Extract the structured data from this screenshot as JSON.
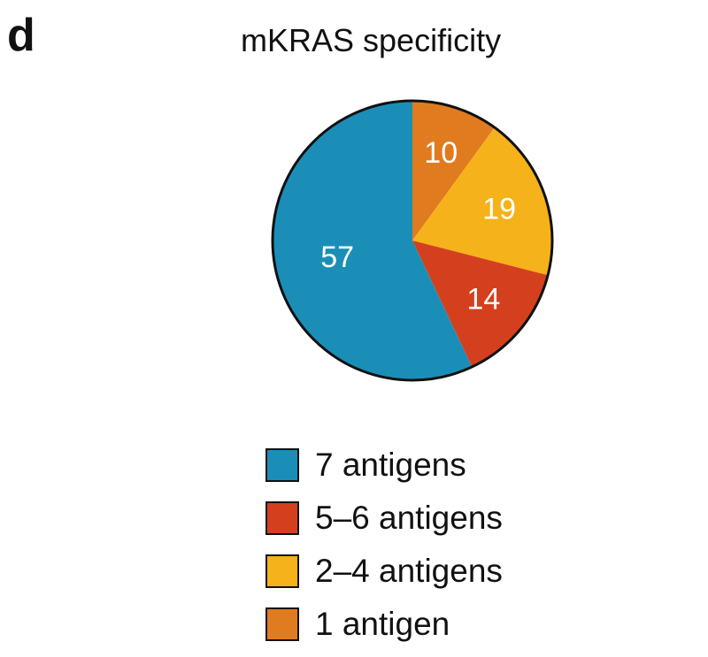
{
  "panel_letter": "d",
  "chart_data": {
    "type": "pie",
    "title": "mKRAS specificity",
    "start_at": "top",
    "direction": "clockwise",
    "slices": [
      {
        "label": "1 antigen",
        "value": 10,
        "color": "#E07B20"
      },
      {
        "label": "2–4 antigens",
        "value": 19,
        "color": "#F6B21A"
      },
      {
        "label": "5–6 antigens",
        "value": 14,
        "color": "#D4401E"
      },
      {
        "label": "7 antigens",
        "value": 57,
        "color": "#1B8EB8"
      }
    ],
    "legend": [
      {
        "label": "7 antigens",
        "color": "#1B8EB8"
      },
      {
        "label": "5–6 antigens",
        "color": "#D4401E"
      },
      {
        "label": "2–4 antigens",
        "color": "#F6B21A"
      },
      {
        "label": "1 antigen",
        "color": "#E07B20"
      }
    ],
    "legend_placement": "bottom"
  }
}
